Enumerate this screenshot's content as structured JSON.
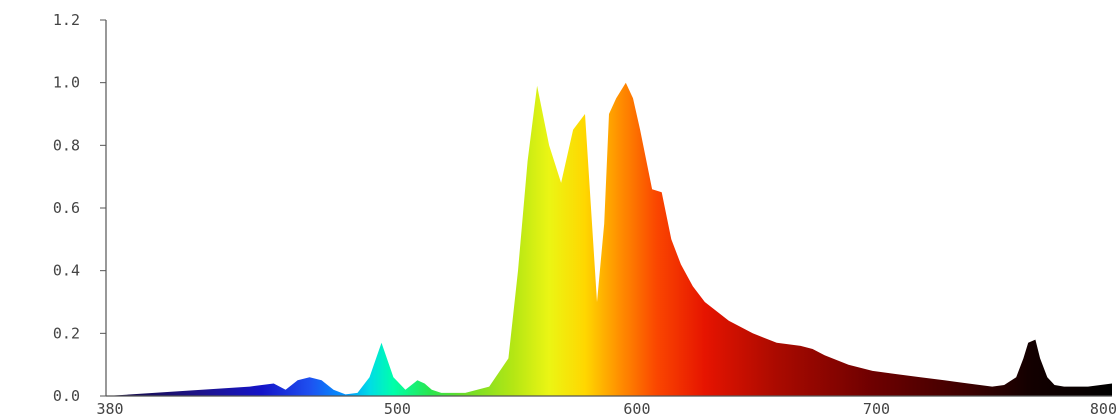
{
  "chart_data": {
    "type": "area",
    "title": "",
    "xlabel": "",
    "ylabel": "",
    "xlim": [
      380,
      800
    ],
    "ylim": [
      0,
      1.2
    ],
    "grid": false,
    "legend": "none",
    "x_ticks": [
      {
        "value": 380,
        "label": "380"
      },
      {
        "value": 500,
        "label": "500"
      },
      {
        "value": 600,
        "label": "600"
      },
      {
        "value": 700,
        "label": "700"
      },
      {
        "value": 800,
        "label": "800"
      }
    ],
    "y_ticks": [
      {
        "value": 0.0,
        "label": "0.0"
      },
      {
        "value": 0.2,
        "label": "0.2"
      },
      {
        "value": 0.4,
        "label": "0.4"
      },
      {
        "value": 0.6,
        "label": "0.6"
      },
      {
        "value": 0.8,
        "label": "0.8"
      },
      {
        "value": 1.0,
        "label": "1.0"
      },
      {
        "value": 1.2,
        "label": "1.2"
      }
    ],
    "series": [
      {
        "fill": "spectral-wavelength-gradient",
        "x": [
          380,
          400,
          420,
          440,
          450,
          455,
          460,
          465,
          470,
          475,
          480,
          485,
          490,
          495,
          500,
          505,
          510,
          513,
          516,
          520,
          530,
          540,
          548,
          552,
          556,
          560,
          565,
          570,
          575,
          580,
          585,
          588,
          590,
          593,
          597,
          600,
          603,
          608,
          612,
          616,
          620,
          625,
          630,
          640,
          650,
          660,
          670,
          675,
          680,
          690,
          700,
          710,
          720,
          730,
          740,
          750,
          755,
          760,
          763,
          765,
          768,
          770,
          773,
          776,
          780,
          790,
          800
        ],
        "y": [
          0.0,
          0.01,
          0.02,
          0.03,
          0.04,
          0.02,
          0.05,
          0.06,
          0.05,
          0.02,
          0.005,
          0.01,
          0.06,
          0.17,
          0.06,
          0.02,
          0.05,
          0.04,
          0.02,
          0.01,
          0.01,
          0.03,
          0.12,
          0.4,
          0.75,
          0.99,
          0.8,
          0.68,
          0.85,
          0.9,
          0.3,
          0.55,
          0.9,
          0.95,
          1.0,
          0.95,
          0.85,
          0.66,
          0.65,
          0.5,
          0.42,
          0.35,
          0.3,
          0.24,
          0.2,
          0.17,
          0.16,
          0.15,
          0.13,
          0.1,
          0.08,
          0.07,
          0.06,
          0.05,
          0.04,
          0.03,
          0.035,
          0.06,
          0.12,
          0.17,
          0.18,
          0.12,
          0.06,
          0.035,
          0.03,
          0.03,
          0.04
        ]
      }
    ]
  }
}
